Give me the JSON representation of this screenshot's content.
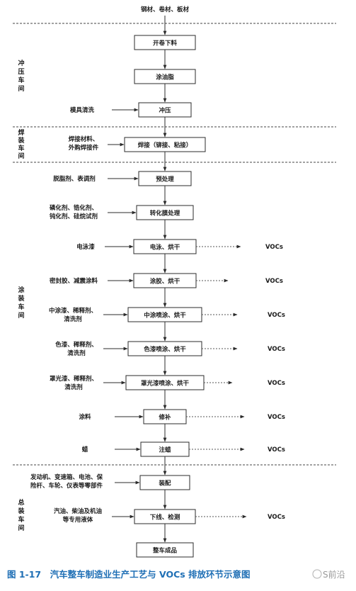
{
  "top_input": "钢材、卷材、板材",
  "sections": [
    "冲压车间",
    "焊装车间",
    "涂装车间",
    "总装车间"
  ],
  "steps": [
    "开卷下料",
    "涂油脂",
    "冲压",
    "焊接（铆接、粘接）",
    "预处理",
    "转化膜处理",
    "电泳、烘干",
    "涂胶、烘干",
    "中涂喷涂、烘干",
    "色漆喷涂、烘干",
    "罩光漆喷涂、烘干",
    "修补",
    "注蜡",
    "装配",
    "下线、检测",
    "整车成品"
  ],
  "inputs": [
    [
      "模具清洗"
    ],
    [
      "焊接材料、",
      "外购焊接件"
    ],
    [
      "脱脂剂、表调剂"
    ],
    [
      "磷化剂、锆化剂、",
      "钝化剂、硅烷试剂"
    ],
    [
      "电泳漆"
    ],
    [
      "密封胶、减震涂料"
    ],
    [
      "中涂漆、稀释剂、",
      "清洗剂"
    ],
    [
      "色漆、稀释剂、",
      "清洗剂"
    ],
    [
      "罩光漆、稀释剂、",
      "清洗剂"
    ],
    [
      "涂料"
    ],
    [
      "蜡"
    ],
    [
      "发动机、变速箱、电池、保",
      "险杆、车轮、仪表等零部件"
    ],
    [
      "汽油、柴油及机油",
      "等专用液体"
    ]
  ],
  "output_label": "VOCs",
  "caption": "图 1-17　汽车整车制造业生产工艺与 VOCs 排放环节示意图",
  "watermark": "S前沿"
}
